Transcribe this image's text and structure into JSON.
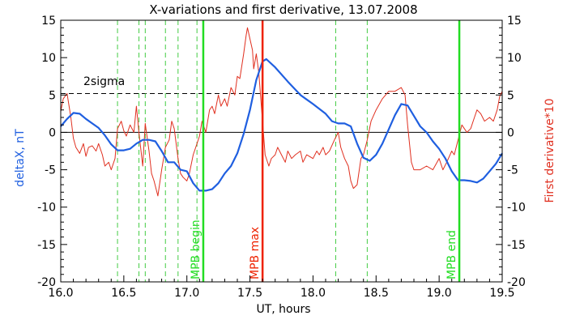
{
  "chart_data": {
    "type": "line",
    "title": "X-variations and first derivative, 13.07.2008",
    "xlabel": "UT, hours",
    "ylabel_left": "deltaX, nT",
    "ylabel_right": "First derivative*10",
    "xlim": [
      16.0,
      19.5
    ],
    "ylim": [
      -20,
      15
    ],
    "xticks": [
      "16.0",
      "16.5",
      "17.0",
      "17.5",
      "18.0",
      "18.5",
      "19.0",
      "19.5"
    ],
    "yticks": [
      "15",
      "10",
      "5",
      "0",
      "-5",
      "-10",
      "-15",
      "-20"
    ],
    "colors": {
      "deltaX": "#1f5fe0",
      "derivative": "#e03020",
      "marker_green": "#22dd22",
      "marker_red": "#ee2200",
      "dashed_green": "#44cc44"
    },
    "sigma_level": 5.2,
    "sigma_label": "2sigma",
    "dashed_lines": [
      16.45,
      16.62,
      16.67,
      16.83,
      16.93,
      17.08,
      18.18,
      18.43
    ],
    "markers": [
      {
        "x": 17.13,
        "label": "MPB begin",
        "color": "#22dd22"
      },
      {
        "x": 17.6,
        "label": "MPB max",
        "color": "#ee2200"
      },
      {
        "x": 19.16,
        "label": "MPB end",
        "color": "#22dd22"
      }
    ],
    "series": [
      {
        "name": "deltaX",
        "color": "#1f5fe0",
        "points": [
          [
            16.0,
            0.8
          ],
          [
            16.05,
            1.8
          ],
          [
            16.1,
            2.6
          ],
          [
            16.15,
            2.5
          ],
          [
            16.2,
            1.8
          ],
          [
            16.25,
            1.2
          ],
          [
            16.3,
            0.6
          ],
          [
            16.35,
            -0.4
          ],
          [
            16.4,
            -1.6
          ],
          [
            16.45,
            -2.4
          ],
          [
            16.5,
            -2.4
          ],
          [
            16.55,
            -2.2
          ],
          [
            16.6,
            -1.5
          ],
          [
            16.65,
            -1.0
          ],
          [
            16.7,
            -1.0
          ],
          [
            16.75,
            -1.2
          ],
          [
            16.8,
            -2.5
          ],
          [
            16.85,
            -4.0
          ],
          [
            16.9,
            -4.0
          ],
          [
            16.95,
            -5.0
          ],
          [
            17.0,
            -5.2
          ],
          [
            17.05,
            -6.8
          ],
          [
            17.1,
            -7.8
          ],
          [
            17.15,
            -7.8
          ],
          [
            17.2,
            -7.6
          ],
          [
            17.25,
            -6.8
          ],
          [
            17.3,
            -5.5
          ],
          [
            17.35,
            -4.5
          ],
          [
            17.4,
            -2.8
          ],
          [
            17.45,
            -0.2
          ],
          [
            17.5,
            3.0
          ],
          [
            17.55,
            7.0
          ],
          [
            17.6,
            9.5
          ],
          [
            17.63,
            9.8
          ],
          [
            17.7,
            8.7
          ],
          [
            17.8,
            6.8
          ],
          [
            17.9,
            5.0
          ],
          [
            18.0,
            3.8
          ],
          [
            18.1,
            2.5
          ],
          [
            18.15,
            1.5
          ],
          [
            18.2,
            1.2
          ],
          [
            18.25,
            1.2
          ],
          [
            18.3,
            0.8
          ],
          [
            18.35,
            -1.5
          ],
          [
            18.4,
            -3.4
          ],
          [
            18.45,
            -3.8
          ],
          [
            18.5,
            -3.0
          ],
          [
            18.55,
            -1.5
          ],
          [
            18.6,
            0.4
          ],
          [
            18.65,
            2.3
          ],
          [
            18.7,
            3.8
          ],
          [
            18.75,
            3.6
          ],
          [
            18.8,
            2.2
          ],
          [
            18.85,
            0.8
          ],
          [
            18.9,
            0.0
          ],
          [
            18.95,
            -1.2
          ],
          [
            19.0,
            -2.2
          ],
          [
            19.05,
            -3.5
          ],
          [
            19.1,
            -5.2
          ],
          [
            19.15,
            -6.4
          ],
          [
            19.2,
            -6.4
          ],
          [
            19.25,
            -6.5
          ],
          [
            19.3,
            -6.7
          ],
          [
            19.35,
            -6.2
          ],
          [
            19.4,
            -5.2
          ],
          [
            19.45,
            -4.2
          ],
          [
            19.5,
            -2.8
          ]
        ]
      },
      {
        "name": "First derivative*10",
        "color": "#e03020",
        "points": [
          [
            16.0,
            2.8
          ],
          [
            16.02,
            4.5
          ],
          [
            16.05,
            5.2
          ],
          [
            16.08,
            2.0
          ],
          [
            16.1,
            -0.8
          ],
          [
            16.12,
            -2.0
          ],
          [
            16.15,
            -2.8
          ],
          [
            16.18,
            -1.5
          ],
          [
            16.2,
            -3.2
          ],
          [
            16.22,
            -2.0
          ],
          [
            16.25,
            -1.8
          ],
          [
            16.28,
            -2.5
          ],
          [
            16.3,
            -1.5
          ],
          [
            16.33,
            -3.0
          ],
          [
            16.35,
            -4.5
          ],
          [
            16.38,
            -4.0
          ],
          [
            16.4,
            -5.0
          ],
          [
            16.43,
            -3.5
          ],
          [
            16.45,
            0.5
          ],
          [
            16.48,
            1.5
          ],
          [
            16.5,
            0.2
          ],
          [
            16.52,
            -0.5
          ],
          [
            16.55,
            1.0
          ],
          [
            16.58,
            0.0
          ],
          [
            16.6,
            3.5
          ],
          [
            16.62,
            0.0
          ],
          [
            16.65,
            -4.5
          ],
          [
            16.67,
            1.2
          ],
          [
            16.7,
            -2.5
          ],
          [
            16.72,
            -5.5
          ],
          [
            16.74,
            -6.5
          ],
          [
            16.77,
            -8.5
          ],
          [
            16.8,
            -5.0
          ],
          [
            16.83,
            -2.0
          ],
          [
            16.86,
            -1.0
          ],
          [
            16.88,
            1.5
          ],
          [
            16.9,
            0.5
          ],
          [
            16.93,
            -3.5
          ],
          [
            16.95,
            -5.5
          ],
          [
            16.97,
            -6.0
          ],
          [
            17.0,
            -6.5
          ],
          [
            17.02,
            -5.5
          ],
          [
            17.05,
            -3.0
          ],
          [
            17.08,
            -1.5
          ],
          [
            17.1,
            -0.5
          ],
          [
            17.12,
            1.5
          ],
          [
            17.15,
            0.0
          ],
          [
            17.18,
            3.0
          ],
          [
            17.2,
            3.5
          ],
          [
            17.22,
            2.5
          ],
          [
            17.25,
            5.0
          ],
          [
            17.27,
            3.5
          ],
          [
            17.3,
            4.5
          ],
          [
            17.32,
            3.5
          ],
          [
            17.35,
            6.0
          ],
          [
            17.38,
            5.0
          ],
          [
            17.4,
            7.5
          ],
          [
            17.42,
            7.2
          ],
          [
            17.45,
            10.5
          ],
          [
            17.47,
            13.0
          ],
          [
            17.48,
            14.0
          ],
          [
            17.5,
            12.5
          ],
          [
            17.52,
            11.0
          ],
          [
            17.53,
            8.5
          ],
          [
            17.55,
            10.5
          ],
          [
            17.57,
            8.0
          ],
          [
            17.6,
            1.5
          ],
          [
            17.62,
            -3.0
          ],
          [
            17.65,
            -4.5
          ],
          [
            17.67,
            -3.5
          ],
          [
            17.7,
            -3.0
          ],
          [
            17.72,
            -2.0
          ],
          [
            17.75,
            -3.0
          ],
          [
            17.78,
            -4.0
          ],
          [
            17.8,
            -2.5
          ],
          [
            17.83,
            -3.5
          ],
          [
            17.86,
            -3.0
          ],
          [
            17.9,
            -2.5
          ],
          [
            17.92,
            -4.0
          ],
          [
            17.95,
            -3.0
          ],
          [
            18.0,
            -3.5
          ],
          [
            18.03,
            -2.5
          ],
          [
            18.05,
            -3.0
          ],
          [
            18.08,
            -2.0
          ],
          [
            18.1,
            -3.0
          ],
          [
            18.13,
            -2.5
          ],
          [
            18.17,
            -1.0
          ],
          [
            18.2,
            0.0
          ],
          [
            18.22,
            -2.0
          ],
          [
            18.25,
            -3.5
          ],
          [
            18.28,
            -4.5
          ],
          [
            18.3,
            -6.5
          ],
          [
            18.32,
            -7.5
          ],
          [
            18.35,
            -7.0
          ],
          [
            18.38,
            -3.5
          ],
          [
            18.4,
            -3.0
          ],
          [
            18.43,
            -1.0
          ],
          [
            18.46,
            1.5
          ],
          [
            18.5,
            3.0
          ],
          [
            18.55,
            4.5
          ],
          [
            18.6,
            5.5
          ],
          [
            18.65,
            5.5
          ],
          [
            18.7,
            6.0
          ],
          [
            18.73,
            5.0
          ],
          [
            18.75,
            1.0
          ],
          [
            18.78,
            -4.0
          ],
          [
            18.8,
            -5.0
          ],
          [
            18.85,
            -5.0
          ],
          [
            18.9,
            -4.5
          ],
          [
            18.95,
            -5.0
          ],
          [
            19.0,
            -3.5
          ],
          [
            19.03,
            -5.0
          ],
          [
            19.06,
            -4.0
          ],
          [
            19.1,
            -2.5
          ],
          [
            19.12,
            -3.0
          ],
          [
            19.15,
            -1.0
          ],
          [
            19.18,
            1.0
          ],
          [
            19.2,
            0.5
          ],
          [
            19.22,
            0.0
          ],
          [
            19.25,
            0.5
          ],
          [
            19.28,
            2.0
          ],
          [
            19.3,
            3.0
          ],
          [
            19.33,
            2.5
          ],
          [
            19.36,
            1.5
          ],
          [
            19.4,
            2.0
          ],
          [
            19.43,
            1.5
          ],
          [
            19.46,
            3.0
          ],
          [
            19.48,
            4.8
          ],
          [
            19.5,
            5.5
          ]
        ]
      }
    ]
  }
}
